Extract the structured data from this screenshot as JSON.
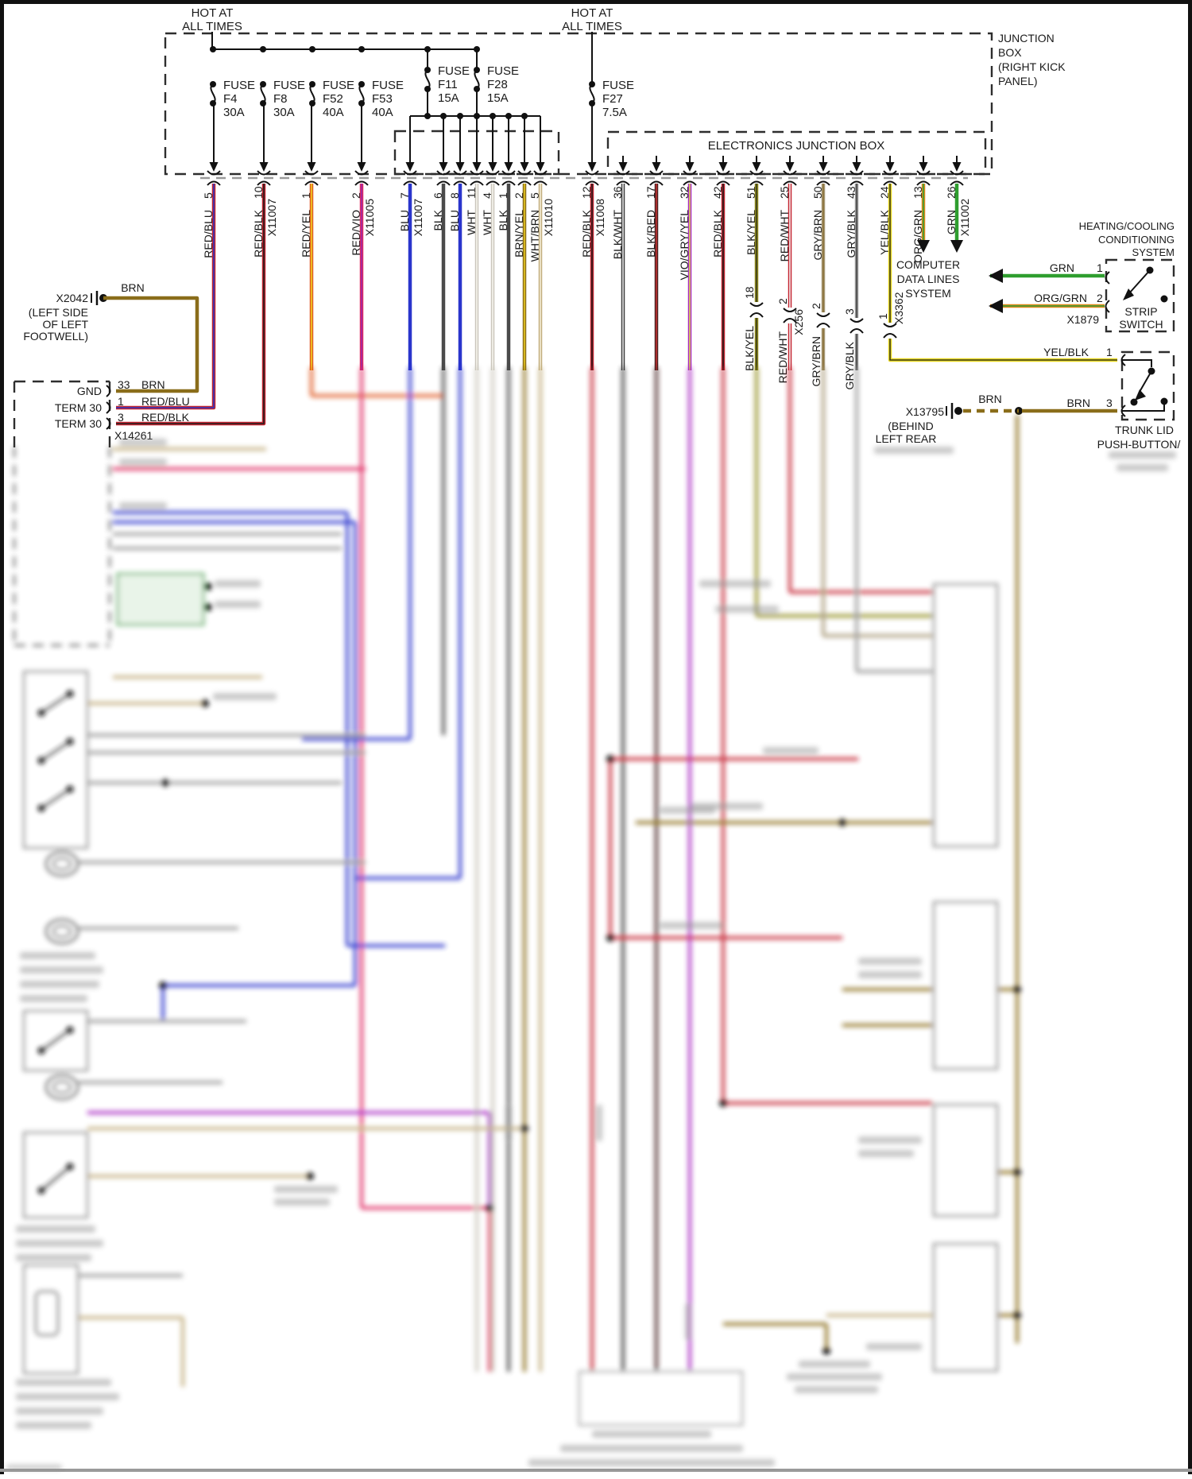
{
  "header": {
    "hot1_l1": "HOT AT",
    "hot1_l2": "ALL TIMES",
    "hot2_l1": "HOT AT",
    "hot2_l2": "ALL TIMES",
    "junction_box_lines": [
      "JUNCTION",
      "BOX",
      "(RIGHT KICK",
      "PANEL)"
    ],
    "electronics_junction_box": "ELECTRONICS JUNCTION BOX"
  },
  "fuses": [
    {
      "t": "FUSE",
      "id": "F4",
      "a": "30A"
    },
    {
      "t": "FUSE",
      "id": "F8",
      "a": "30A"
    },
    {
      "t": "FUSE",
      "id": "F52",
      "a": "40A"
    },
    {
      "t": "FUSE",
      "id": "F53",
      "a": "40A"
    },
    {
      "t": "FUSE",
      "id": "F11",
      "a": "15A"
    },
    {
      "t": "FUSE",
      "id": "F28",
      "a": "15A"
    },
    {
      "t": "FUSE",
      "id": "F27",
      "a": "7.5A"
    }
  ],
  "wires": [
    {
      "pin": "5",
      "label": "RED/BLU"
    },
    {
      "pin": "10",
      "label": "RED/BLK",
      "connector": "X11007"
    },
    {
      "pin": "1",
      "label": "RED/YEL"
    },
    {
      "pin": "2",
      "label": "RED/VIO",
      "connector": "X11005"
    },
    {
      "pin": "7",
      "label": "BLU",
      "connector": "X11007"
    },
    {
      "pin": "6",
      "label": "BLK"
    },
    {
      "pin": "8",
      "label": "BLU"
    },
    {
      "pin": "11",
      "label": "WHT"
    },
    {
      "pin": "4",
      "label": "WHT"
    },
    {
      "pin": "1",
      "label": "BLK"
    },
    {
      "pin": "2",
      "label": "BRN/YEL"
    },
    {
      "pin": "5",
      "label": "WHT/BRN",
      "connector": "X11010"
    },
    {
      "pin": "12",
      "label": "RED/BLK",
      "connector": "X11008"
    },
    {
      "pin": "36",
      "label": "BLK/WHT"
    },
    {
      "pin": "17",
      "label": "BLK/RED"
    },
    {
      "pin": "32",
      "label": "VIO/GRY/YEL"
    },
    {
      "pin": "42",
      "label": "RED/BLK"
    },
    {
      "pin": "51",
      "label": "BLK/YEL"
    },
    {
      "pin": "25",
      "label": "RED/WHT"
    },
    {
      "pin": "50",
      "label": "GRY/BRN"
    },
    {
      "pin": "43",
      "label": "GRY/BLK"
    },
    {
      "pin": "24",
      "label": "YEL/BLK"
    },
    {
      "pin": "13",
      "label": "ORG/GRN"
    },
    {
      "pin": "26",
      "label": "GRN",
      "connector": "X11002"
    }
  ],
  "inline_breaks": [
    {
      "pin": "18",
      "label_below": "BLK/YEL"
    },
    {
      "pin": "2",
      "connector": "X256",
      "label_below": "RED/WHT"
    },
    {
      "pin": "2",
      "label_below": "GRY/BRN"
    },
    {
      "pin": "3",
      "label_below": "GRY/BLK"
    },
    {
      "pin": "1",
      "connector": "X3362"
    }
  ],
  "computer": {
    "l1": "COMPUTER",
    "l2": "DATA LINES",
    "l3": "SYSTEM"
  },
  "heating": {
    "l1": "HEATING/COOLING",
    "l2": "CONDITIONING",
    "l3": "SYSTEM",
    "sw1": "STRIP",
    "sw2": "SWITCH",
    "pin1_label": "GRN",
    "pin1": "1",
    "pin2_label": "ORG/GRN",
    "pin2": "2",
    "connector": "X1879"
  },
  "trunk": {
    "pin1_label": "YEL/BLK",
    "pin1": "1",
    "pin3_label": "BRN",
    "pin3": "3",
    "brn1": "BRN",
    "brn2": "BRN",
    "name1": "TRUNK LID",
    "name2": "PUSH-BUTTON/",
    "stub_name": "X13795",
    "stub_l1": "(BEHIND",
    "stub_l2": "LEFT REAR"
  },
  "x2042": {
    "name": "X2042",
    "wire": "BRN",
    "l1": "(LEFT SIDE",
    "l2": "OF LEFT",
    "l3": "FOOTWELL)"
  },
  "module": {
    "gnd": "GND",
    "gnd_pin": "33",
    "gnd_wire": "BRN",
    "t30a": "TERM 30",
    "t30a_pin": "1",
    "t30a_wire": "RED/BLU",
    "t30b": "TERM 30",
    "t30b_pin": "3",
    "t30b_wire": "RED/BLK",
    "connector": "X14261"
  },
  "colors": {
    "RED/BLU": [
      "#c42430",
      "#2a35c4"
    ],
    "RED/BLK": [
      "#c42430",
      "#1d1d1d"
    ],
    "RED/YEL": [
      "#e05a20",
      "#f0d020"
    ],
    "RED/VIO": [
      "#df2a62",
      "#9a28a8"
    ],
    "BLU": [
      "#2a35cc"
    ],
    "BLK": [
      "#4a4a4a"
    ],
    "WHT": [
      "#cac6bc",
      "#f7f5ef"
    ],
    "BRN/YEL": [
      "#8a6d1a",
      "#e8c820"
    ],
    "WHT/BRN": [
      "#c2ae7e",
      "#f4ecd6"
    ],
    "BLK/WHT": [
      "#3d3d3d",
      "#e8e8e8"
    ],
    "BLK/RED": [
      "#4a2222",
      "#c03030"
    ],
    "VIO/GRY/YEL": [
      "#a82ac2",
      "#e0e050"
    ],
    "BLK/YEL": [
      "#8f8a1e",
      "#3a3a1a"
    ],
    "RED/WHT": [
      "#c42430",
      "#f5f5f5"
    ],
    "GRY/BRN": [
      "#a89a78",
      "#8a7038"
    ],
    "GRY/BLK": [
      "#9a9a9a",
      "#474747"
    ],
    "YEL/BLK": [
      "#e8d820",
      "#3a3a1a"
    ],
    "ORG/GRN": [
      "#e08818",
      "#2e9e3a"
    ],
    "GRN": [
      "#2f9e2f"
    ],
    "BRN": [
      "#8a6d1a"
    ]
  }
}
